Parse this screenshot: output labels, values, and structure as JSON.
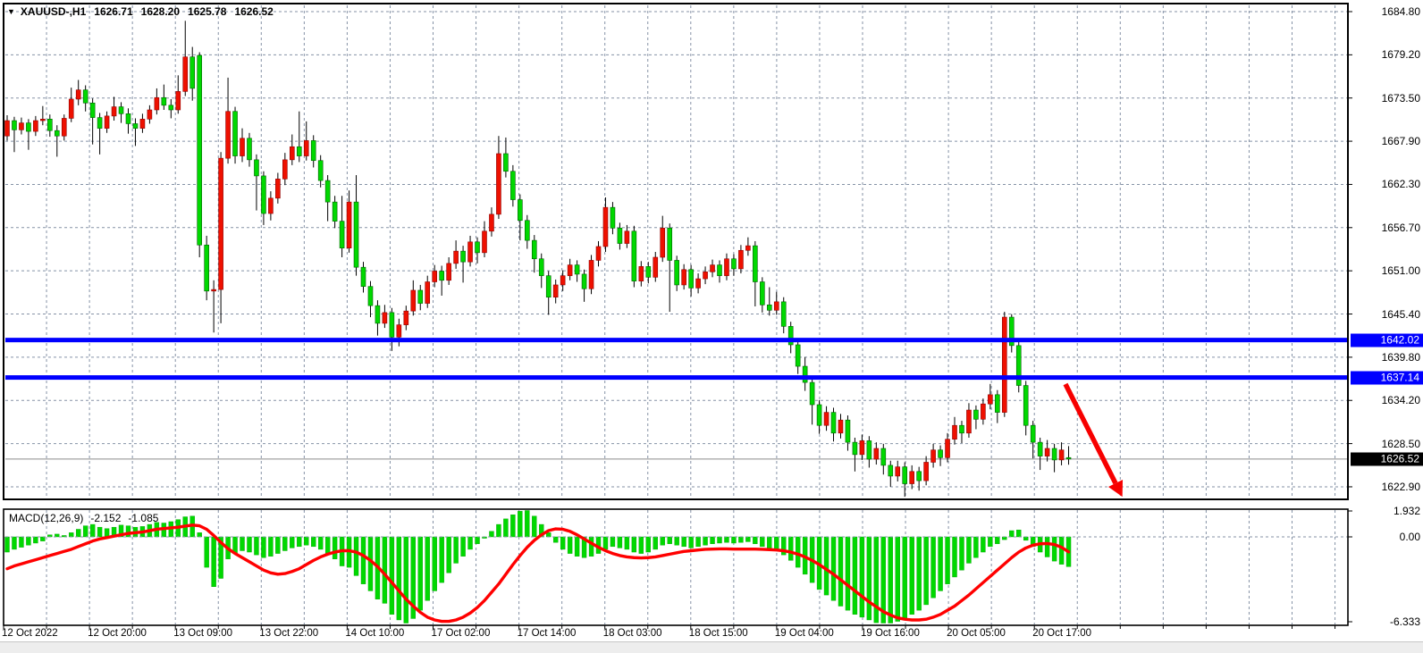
{
  "window": {
    "dropdown_icon": "triangle-down",
    "symbol_period": "XAUUSD-,H1",
    "ohlc_display": {
      "open": "1626.71",
      "high": "1628.20",
      "low": "1625.78",
      "close": "1626.52"
    }
  },
  "colors": {
    "bull_candle": "#ee1000",
    "bear_candle": "#00d800",
    "wick": "#000000",
    "grid": "#8592a6",
    "support_line": "#0000ff",
    "current_price_line": "#8c8c8c",
    "macd_histogram": "#00d800",
    "macd_signal": "#ff0000",
    "arrow": "#f70000",
    "tag_text": "#ffffff",
    "current_tag_bg": "#000000"
  },
  "price_axis": {
    "labels": [
      "1684.80",
      "1679.20",
      "1673.50",
      "1667.90",
      "1662.30",
      "1656.70",
      "1651.00",
      "1645.40",
      "1639.80",
      "1634.20",
      "1628.50",
      "1622.90"
    ],
    "tags": [
      {
        "value": "1642.02",
        "price": 1642.02,
        "bg": "#0000ff"
      },
      {
        "value": "1637.14",
        "price": 1637.14,
        "bg": "#0000ff"
      },
      {
        "value": "1626.52",
        "price": 1626.52,
        "bg": "#000000"
      }
    ]
  },
  "time_axis": {
    "labels": [
      "12 Oct 2022",
      "12 Oct 20:00",
      "13 Oct 09:00",
      "13 Oct 22:00",
      "14 Oct 10:00",
      "17 Oct 02:00",
      "17 Oct 14:00",
      "18 Oct 03:00",
      "18 Oct 15:00",
      "19 Oct 04:00",
      "19 Oct 16:00",
      "20 Oct 05:00",
      "20 Oct 17:00"
    ]
  },
  "macd_panel": {
    "label": "MACD(12,26,9)",
    "main_value": "-2.152",
    "signal_value": "-1.085",
    "axis_labels": [
      {
        "text": "1.932",
        "value": 1.932
      },
      {
        "text": "0.00",
        "value": 0.0
      },
      {
        "text": "-6.333",
        "value": -6.333
      }
    ]
  },
  "chart_data": {
    "type": "candlestick",
    "symbol": "XAUUSD-",
    "timeframe": "H1",
    "title": "XAUUSD-,H1 1626.71 1628.20 1625.78 1626.52",
    "ylim": [
      1622.9,
      1684.8
    ],
    "grid": "dashed",
    "current_price": 1626.52,
    "horizontal_lines": [
      1642.02,
      1637.14
    ],
    "trend_arrow": {
      "x1_index": 148,
      "y1_price": 1634.7,
      "x2_index": 156,
      "y2_price": 1621.5,
      "direction": "down"
    },
    "candles": [
      [
        1668.6,
        1671.3,
        1668.0,
        1670.6
      ],
      [
        1670.6,
        1671.1,
        1666.5,
        1669.4
      ],
      [
        1669.4,
        1671.0,
        1668.8,
        1670.3
      ],
      [
        1670.3,
        1670.8,
        1666.8,
        1669.2
      ],
      [
        1669.2,
        1671.2,
        1668.6,
        1670.6
      ],
      [
        1670.6,
        1672.5,
        1670.0,
        1670.8
      ],
      [
        1670.8,
        1671.4,
        1668.5,
        1669.3
      ],
      [
        1669.3,
        1670.0,
        1665.9,
        1668.6
      ],
      [
        1668.6,
        1671.4,
        1668.0,
        1670.9
      ],
      [
        1670.9,
        1674.9,
        1670.4,
        1673.4
      ],
      [
        1673.4,
        1675.9,
        1672.6,
        1674.6
      ],
      [
        1674.6,
        1675.2,
        1671.8,
        1672.9
      ],
      [
        1672.9,
        1673.5,
        1667.5,
        1671.0
      ],
      [
        1671.0,
        1671.6,
        1666.2,
        1669.6
      ],
      [
        1669.6,
        1671.8,
        1669.0,
        1671.2
      ],
      [
        1671.2,
        1673.7,
        1670.6,
        1672.4
      ],
      [
        1672.4,
        1673.0,
        1670.3,
        1671.5
      ],
      [
        1671.5,
        1672.2,
        1668.9,
        1670.2
      ],
      [
        1670.2,
        1670.9,
        1667.3,
        1669.6
      ],
      [
        1669.6,
        1671.5,
        1669.0,
        1670.8
      ],
      [
        1670.8,
        1672.6,
        1670.2,
        1672.0
      ],
      [
        1672.0,
        1674.8,
        1671.4,
        1673.6
      ],
      [
        1673.6,
        1675.3,
        1672.0,
        1672.6
      ],
      [
        1672.6,
        1673.4,
        1670.9,
        1672.0
      ],
      [
        1672.0,
        1676.5,
        1671.5,
        1674.4
      ],
      [
        1674.4,
        1683.6,
        1673.8,
        1678.9
      ],
      [
        1678.9,
        1680.2,
        1673.2,
        1674.8
      ],
      [
        1679.1,
        1679.5,
        1652.8,
        1654.4
      ],
      [
        1654.4,
        1655.6,
        1647.2,
        1648.4
      ],
      [
        1648.4,
        1649.8,
        1643.0,
        1648.6
      ],
      [
        1648.6,
        1666.5,
        1644.2,
        1665.7
      ],
      [
        1665.7,
        1676.2,
        1665.0,
        1671.8
      ],
      [
        1671.8,
        1672.4,
        1665.0,
        1666.0
      ],
      [
        1666.0,
        1669.6,
        1665.2,
        1668.3
      ],
      [
        1668.3,
        1669.0,
        1664.6,
        1665.5
      ],
      [
        1665.5,
        1666.2,
        1658.9,
        1663.4
      ],
      [
        1663.4,
        1664.0,
        1657.0,
        1658.5
      ],
      [
        1658.5,
        1661.4,
        1657.6,
        1660.5
      ],
      [
        1660.5,
        1663.8,
        1659.8,
        1663.0
      ],
      [
        1663.0,
        1666.4,
        1662.2,
        1665.5
      ],
      [
        1665.5,
        1668.8,
        1664.8,
        1667.2
      ],
      [
        1667.2,
        1671.8,
        1665.2,
        1666.0
      ],
      [
        1666.0,
        1670.5,
        1665.4,
        1668.0
      ],
      [
        1668.0,
        1668.7,
        1664.5,
        1665.4
      ],
      [
        1665.4,
        1666.1,
        1661.9,
        1662.8
      ],
      [
        1662.8,
        1663.5,
        1657.5,
        1660.0
      ],
      [
        1660.0,
        1660.8,
        1656.6,
        1657.5
      ],
      [
        1657.5,
        1660.8,
        1652.8,
        1654.0
      ],
      [
        1654.0,
        1661.5,
        1653.4,
        1660.0
      ],
      [
        1660.0,
        1663.5,
        1650.4,
        1651.5
      ],
      [
        1651.5,
        1652.2,
        1648.2,
        1649.0
      ],
      [
        1649.0,
        1649.7,
        1645.0,
        1646.5
      ],
      [
        1646.5,
        1647.2,
        1642.6,
        1644.2
      ],
      [
        1644.2,
        1646.6,
        1643.6,
        1645.6
      ],
      [
        1645.6,
        1646.2,
        1640.6,
        1642.4
      ],
      [
        1642.4,
        1644.8,
        1641.2,
        1644.0
      ],
      [
        1644.0,
        1646.5,
        1643.3,
        1645.8
      ],
      [
        1645.8,
        1649.8,
        1645.2,
        1648.5
      ],
      [
        1648.5,
        1649.2,
        1645.9,
        1646.8
      ],
      [
        1646.8,
        1650.4,
        1646.2,
        1649.6
      ],
      [
        1649.6,
        1651.8,
        1648.9,
        1651.0
      ],
      [
        1651.0,
        1651.7,
        1647.8,
        1649.8
      ],
      [
        1649.8,
        1652.8,
        1649.2,
        1652.0
      ],
      [
        1652.0,
        1655.0,
        1651.3,
        1653.6
      ],
      [
        1653.6,
        1654.3,
        1649.5,
        1652.2
      ],
      [
        1652.2,
        1655.6,
        1651.6,
        1654.8
      ],
      [
        1654.8,
        1655.4,
        1652.0,
        1653.4
      ],
      [
        1653.4,
        1657.5,
        1652.8,
        1656.2
      ],
      [
        1656.2,
        1659.3,
        1655.5,
        1658.4
      ],
      [
        1658.4,
        1668.6,
        1657.8,
        1666.3
      ],
      [
        1666.3,
        1668.4,
        1663.2,
        1664.0
      ],
      [
        1664.0,
        1664.8,
        1659.4,
        1660.3
      ],
      [
        1660.3,
        1661.0,
        1655.0,
        1657.6
      ],
      [
        1657.6,
        1658.3,
        1653.9,
        1655.0
      ],
      [
        1655.0,
        1655.7,
        1650.8,
        1652.6
      ],
      [
        1652.6,
        1653.3,
        1648.8,
        1650.4
      ],
      [
        1650.4,
        1651.0,
        1645.3,
        1647.6
      ],
      [
        1647.6,
        1649.9,
        1646.8,
        1649.2
      ],
      [
        1649.2,
        1651.1,
        1648.4,
        1650.4
      ],
      [
        1650.4,
        1652.6,
        1649.8,
        1651.8
      ],
      [
        1651.8,
        1652.4,
        1649.6,
        1650.6
      ],
      [
        1650.6,
        1651.2,
        1647.0,
        1648.7
      ],
      [
        1648.7,
        1653.1,
        1648.0,
        1652.4
      ],
      [
        1652.4,
        1654.9,
        1651.6,
        1654.2
      ],
      [
        1654.2,
        1660.6,
        1653.5,
        1659.3
      ],
      [
        1659.3,
        1660.0,
        1655.8,
        1656.6
      ],
      [
        1656.6,
        1657.3,
        1653.8,
        1654.6
      ],
      [
        1654.6,
        1657.0,
        1654.0,
        1656.2
      ],
      [
        1656.2,
        1656.9,
        1648.9,
        1649.7
      ],
      [
        1649.7,
        1652.3,
        1649.0,
        1651.6
      ],
      [
        1651.6,
        1652.2,
        1649.4,
        1650.2
      ],
      [
        1650.2,
        1653.5,
        1649.6,
        1652.8
      ],
      [
        1652.8,
        1658.2,
        1652.2,
        1656.6
      ],
      [
        1656.6,
        1657.2,
        1645.7,
        1652.4
      ],
      [
        1652.4,
        1653.0,
        1648.4,
        1649.2
      ],
      [
        1649.2,
        1651.9,
        1648.6,
        1651.2
      ],
      [
        1651.2,
        1651.8,
        1647.7,
        1648.8
      ],
      [
        1648.8,
        1650.7,
        1648.1,
        1650.0
      ],
      [
        1650.0,
        1651.6,
        1649.3,
        1650.9
      ],
      [
        1650.9,
        1652.5,
        1650.2,
        1651.8
      ],
      [
        1651.8,
        1652.4,
        1649.5,
        1650.4
      ],
      [
        1650.4,
        1653.3,
        1649.8,
        1652.6
      ],
      [
        1652.6,
        1653.2,
        1650.4,
        1651.3
      ],
      [
        1651.3,
        1654.4,
        1650.7,
        1653.7
      ],
      [
        1653.7,
        1655.4,
        1653.0,
        1654.3
      ],
      [
        1654.3,
        1654.9,
        1646.4,
        1649.6
      ],
      [
        1649.6,
        1650.2,
        1645.6,
        1646.6
      ],
      [
        1646.6,
        1648.9,
        1645.2,
        1645.9
      ],
      [
        1645.9,
        1648.3,
        1645.3,
        1647.0
      ],
      [
        1647.0,
        1647.6,
        1642.9,
        1643.8
      ],
      [
        1643.8,
        1644.4,
        1640.3,
        1641.4
      ],
      [
        1641.4,
        1642.0,
        1637.6,
        1638.6
      ],
      [
        1638.6,
        1639.8,
        1635.4,
        1636.5
      ],
      [
        1636.5,
        1637.1,
        1631.0,
        1633.6
      ],
      [
        1633.6,
        1634.2,
        1629.8,
        1630.9
      ],
      [
        1630.9,
        1633.4,
        1630.2,
        1632.6
      ],
      [
        1632.6,
        1633.2,
        1628.8,
        1629.9
      ],
      [
        1629.9,
        1632.4,
        1629.2,
        1631.6
      ],
      [
        1631.6,
        1632.2,
        1627.6,
        1628.7
      ],
      [
        1628.7,
        1629.3,
        1624.9,
        1627.1
      ],
      [
        1627.1,
        1629.7,
        1626.4,
        1628.9
      ],
      [
        1628.9,
        1629.5,
        1625.4,
        1626.5
      ],
      [
        1626.5,
        1628.7,
        1625.8,
        1627.9
      ],
      [
        1627.9,
        1628.5,
        1624.5,
        1625.7
      ],
      [
        1625.7,
        1626.3,
        1622.9,
        1624.3
      ],
      [
        1624.3,
        1626.3,
        1623.6,
        1625.5
      ],
      [
        1625.5,
        1626.1,
        1621.6,
        1623.3
      ],
      [
        1623.3,
        1625.7,
        1622.6,
        1624.9
      ],
      [
        1624.9,
        1625.5,
        1622.4,
        1623.7
      ],
      [
        1623.7,
        1626.9,
        1623.1,
        1626.1
      ],
      [
        1626.1,
        1628.5,
        1625.4,
        1627.7
      ],
      [
        1627.7,
        1628.3,
        1625.6,
        1626.7
      ],
      [
        1626.7,
        1629.9,
        1626.1,
        1629.1
      ],
      [
        1629.1,
        1632.0,
        1628.4,
        1630.9
      ],
      [
        1630.9,
        1631.5,
        1628.6,
        1629.9
      ],
      [
        1629.9,
        1633.8,
        1629.3,
        1632.9
      ],
      [
        1632.9,
        1633.5,
        1630.4,
        1631.7
      ],
      [
        1631.7,
        1634.4,
        1631.0,
        1633.7
      ],
      [
        1633.7,
        1636.3,
        1633.0,
        1634.9
      ],
      [
        1634.9,
        1635.5,
        1631.2,
        1632.6
      ],
      [
        1632.6,
        1645.7,
        1632.0,
        1645.0
      ],
      [
        1645.0,
        1645.4,
        1640.4,
        1641.3
      ],
      [
        1641.3,
        1641.9,
        1635.2,
        1636.1
      ],
      [
        1636.1,
        1636.7,
        1629.6,
        1630.9
      ],
      [
        1630.9,
        1631.5,
        1626.6,
        1628.7
      ],
      [
        1628.7,
        1629.3,
        1625.1,
        1626.9
      ],
      [
        1626.9,
        1629.0,
        1626.2,
        1627.9
      ],
      [
        1627.9,
        1628.5,
        1624.8,
        1626.4
      ],
      [
        1626.4,
        1628.7,
        1625.7,
        1627.7
      ],
      [
        1626.71,
        1628.2,
        1625.78,
        1626.52
      ]
    ],
    "macd": {
      "params": "12,26,9",
      "range": [
        -6.333,
        1.932
      ],
      "histogram": [
        -1.1,
        -0.9,
        -0.75,
        -0.6,
        -0.45,
        -0.3,
        0.15,
        0.2,
        0.1,
        0.3,
        0.55,
        0.8,
        0.9,
        0.7,
        0.6,
        0.7,
        0.85,
        0.8,
        0.7,
        0.75,
        0.9,
        1.05,
        1.0,
        1.1,
        1.25,
        1.45,
        1.5,
        0.3,
        -2.2,
        -3.6,
        -3.0,
        -1.6,
        -1.2,
        -1.0,
        -1.1,
        -1.3,
        -1.5,
        -1.4,
        -1.2,
        -1.0,
        -0.8,
        -0.7,
        -0.6,
        -0.7,
        -0.9,
        -1.2,
        -1.6,
        -2.1,
        -2.2,
        -2.8,
        -3.4,
        -3.9,
        -4.5,
        -4.8,
        -5.6,
        -6.0,
        -6.33,
        -5.9,
        -5.3,
        -4.6,
        -3.9,
        -3.3,
        -2.6,
        -1.9,
        -1.4,
        -0.9,
        -0.5,
        -0.1,
        0.4,
        0.9,
        1.3,
        1.6,
        1.85,
        1.93,
        1.5,
        0.9,
        0.3,
        -0.4,
        -0.9,
        -1.2,
        -1.4,
        -1.5,
        -1.4,
        -1.2,
        -0.9,
        -0.7,
        -0.8,
        -0.9,
        -1.1,
        -1.2,
        -1.1,
        -0.9,
        -0.6,
        -0.5,
        -0.6,
        -0.7,
        -0.8,
        -0.7,
        -0.6,
        -0.5,
        -0.45,
        -0.4,
        -0.45,
        -0.4,
        -0.35,
        -0.5,
        -0.7,
        -0.9,
        -1.0,
        -1.3,
        -1.7,
        -2.2,
        -2.7,
        -3.3,
        -3.8,
        -4.2,
        -4.6,
        -5.0,
        -5.3,
        -5.6,
        -5.8,
        -6.0,
        -6.2,
        -6.33,
        -6.25,
        -6.1,
        -5.9,
        -5.6,
        -5.3,
        -4.9,
        -4.4,
        -3.9,
        -3.4,
        -2.9,
        -2.4,
        -1.9,
        -1.5,
        -1.1,
        -0.7,
        -0.5,
        -0.2,
        0.45,
        0.5,
        -0.25,
        -0.7,
        -1.1,
        -1.45,
        -1.75,
        -1.98,
        -2.152
      ],
      "signal": [
        -2.3,
        -2.1,
        -1.95,
        -1.8,
        -1.65,
        -1.5,
        -1.35,
        -1.2,
        -1.05,
        -0.9,
        -0.7,
        -0.5,
        -0.3,
        -0.15,
        -0.05,
        0.05,
        0.15,
        0.25,
        0.3,
        0.35,
        0.45,
        0.55,
        0.6,
        0.65,
        0.7,
        0.78,
        0.85,
        0.8,
        0.55,
        0.1,
        -0.4,
        -0.85,
        -1.2,
        -1.5,
        -1.8,
        -2.1,
        -2.4,
        -2.6,
        -2.7,
        -2.65,
        -2.5,
        -2.3,
        -2.0,
        -1.7,
        -1.45,
        -1.25,
        -1.1,
        -1.0,
        -1.0,
        -1.1,
        -1.35,
        -1.7,
        -2.15,
        -2.7,
        -3.3,
        -3.9,
        -4.5,
        -5.0,
        -5.45,
        -5.8,
        -6.0,
        -6.1,
        -6.1,
        -6.0,
        -5.8,
        -5.5,
        -5.1,
        -4.6,
        -4.0,
        -3.4,
        -2.7,
        -2.0,
        -1.35,
        -0.75,
        -0.25,
        0.15,
        0.45,
        0.58,
        0.55,
        0.4,
        0.15,
        -0.15,
        -0.45,
        -0.75,
        -1.0,
        -1.2,
        -1.35,
        -1.45,
        -1.5,
        -1.52,
        -1.5,
        -1.45,
        -1.35,
        -1.25,
        -1.15,
        -1.05,
        -1.0,
        -0.95,
        -0.9,
        -0.88,
        -0.87,
        -0.87,
        -0.88,
        -0.88,
        -0.88,
        -0.88,
        -0.9,
        -0.92,
        -0.95,
        -1.0,
        -1.1,
        -1.25,
        -1.45,
        -1.7,
        -2.0,
        -2.35,
        -2.7,
        -3.1,
        -3.5,
        -3.9,
        -4.3,
        -4.7,
        -5.05,
        -5.4,
        -5.65,
        -5.85,
        -5.95,
        -6.0,
        -6.0,
        -5.95,
        -5.8,
        -5.6,
        -5.3,
        -5.0,
        -4.6,
        -4.2,
        -3.75,
        -3.3,
        -2.85,
        -2.4,
        -1.95,
        -1.5,
        -1.1,
        -0.8,
        -0.6,
        -0.5,
        -0.48,
        -0.55,
        -0.75,
        -1.085
      ]
    }
  }
}
